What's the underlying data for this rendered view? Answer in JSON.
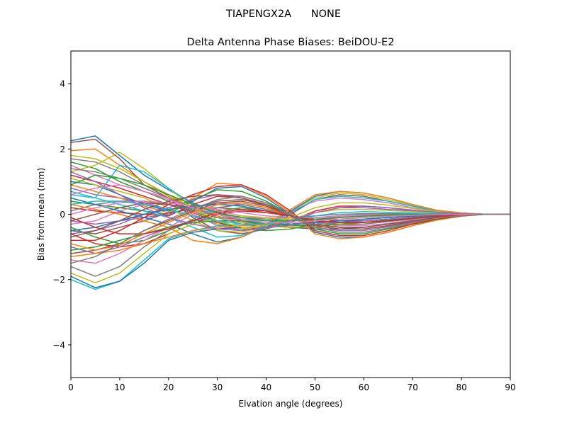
{
  "suptitle": "TIAPENGX2A      NONE",
  "chart_data": {
    "type": "line",
    "title": "Delta Antenna Phase Biases: BeiDOU-E2",
    "xlabel": "Elvation angle (degrees)",
    "ylabel": "Bias from mean (mm)",
    "xlim": [
      0,
      90
    ],
    "ylim": [
      -5,
      5
    ],
    "xticks": [
      0,
      10,
      20,
      30,
      40,
      50,
      60,
      70,
      80,
      90
    ],
    "yticks": [
      -4,
      -2,
      0,
      2,
      4
    ],
    "ytick_labels": [
      "−4",
      "−2",
      "0",
      "2",
      "4"
    ],
    "grid": false,
    "legend": "none",
    "x": [
      0,
      5,
      10,
      15,
      20,
      25,
      30,
      35,
      40,
      45,
      50,
      55,
      60,
      65,
      70,
      75,
      80,
      85,
      90
    ],
    "colors": [
      "#1f77b4",
      "#ff7f0e",
      "#2ca02c",
      "#d62728",
      "#9467bd",
      "#8c564b",
      "#e377c2",
      "#7f7f7f",
      "#bcbd22",
      "#17becf"
    ],
    "series": [
      {
        "values": [
          2.25,
          2.4,
          1.8,
          1.2,
          0.75,
          0.35,
          0.05,
          -0.2,
          -0.35,
          -0.4,
          -0.45,
          -0.45,
          -0.4,
          -0.3,
          -0.2,
          -0.1,
          -0.05,
          0.0,
          0.0
        ]
      },
      {
        "values": [
          1.95,
          2.0,
          1.5,
          1.0,
          0.55,
          0.2,
          -0.05,
          -0.25,
          -0.35,
          -0.4,
          -0.4,
          -0.35,
          -0.3,
          -0.22,
          -0.15,
          -0.08,
          -0.03,
          0.0,
          0.0
        ]
      },
      {
        "values": [
          1.6,
          1.4,
          1.0,
          0.7,
          0.4,
          0.1,
          -0.2,
          -0.45,
          -0.5,
          -0.45,
          -0.3,
          -0.25,
          -0.2,
          -0.15,
          -0.1,
          -0.05,
          -0.02,
          0.0,
          0.0
        ]
      },
      {
        "values": [
          1.2,
          1.0,
          0.8,
          0.55,
          0.3,
          0.05,
          -0.25,
          -0.45,
          -0.4,
          -0.2,
          0.1,
          0.25,
          0.25,
          0.2,
          0.12,
          0.06,
          0.02,
          0.0,
          0.0
        ]
      },
      {
        "values": [
          0.8,
          0.6,
          0.5,
          0.35,
          0.15,
          -0.05,
          -0.3,
          -0.5,
          -0.45,
          -0.25,
          0.05,
          0.2,
          0.2,
          0.15,
          0.1,
          0.05,
          0.02,
          0.0,
          0.0
        ]
      },
      {
        "values": [
          2.2,
          2.3,
          1.7,
          0.9,
          0.5,
          -0.1,
          -0.5,
          -0.6,
          -0.45,
          0.0,
          0.45,
          0.6,
          0.55,
          0.4,
          0.25,
          0.1,
          0.03,
          0.0,
          0.0
        ]
      },
      {
        "values": [
          1.5,
          1.2,
          0.9,
          0.7,
          0.5,
          0.0,
          -0.35,
          -0.5,
          -0.3,
          0.1,
          0.4,
          0.5,
          0.45,
          0.35,
          0.2,
          0.1,
          0.03,
          0.0,
          0.0
        ]
      },
      {
        "values": [
          1.7,
          1.6,
          1.3,
          0.9,
          0.6,
          0.3,
          0.0,
          -0.2,
          -0.3,
          -0.3,
          -0.25,
          -0.2,
          -0.15,
          -0.1,
          -0.06,
          -0.03,
          -0.01,
          0.0,
          0.0
        ]
      },
      {
        "values": [
          1.3,
          1.5,
          1.9,
          1.4,
          0.8,
          0.2,
          -0.3,
          -0.45,
          -0.35,
          -0.15,
          0.05,
          0.15,
          0.15,
          0.12,
          0.08,
          0.04,
          0.01,
          0.0,
          0.0
        ]
      },
      {
        "values": [
          0.6,
          0.5,
          1.5,
          1.3,
          0.8,
          0.3,
          0.0,
          -0.15,
          -0.2,
          -0.15,
          -0.1,
          -0.05,
          0.0,
          0.02,
          0.02,
          0.01,
          0.0,
          0.0,
          0.0
        ]
      },
      {
        "values": [
          1.0,
          0.9,
          0.6,
          0.3,
          0.1,
          0.4,
          0.8,
          0.85,
          0.5,
          0.0,
          -0.55,
          -0.7,
          -0.7,
          -0.55,
          -0.35,
          -0.15,
          -0.05,
          0.0,
          0.0
        ]
      },
      {
        "values": [
          0.9,
          0.7,
          0.5,
          0.25,
          0.05,
          0.5,
          0.95,
          0.9,
          0.55,
          0.05,
          -0.6,
          -0.75,
          -0.7,
          -0.55,
          -0.35,
          -0.18,
          -0.06,
          0.0,
          0.0
        ]
      },
      {
        "values": [
          0.4,
          0.3,
          0.2,
          0.1,
          0.0,
          0.45,
          0.75,
          0.7,
          0.4,
          0.0,
          -0.45,
          -0.6,
          -0.6,
          -0.45,
          -0.3,
          -0.15,
          -0.05,
          0.0,
          0.0
        ]
      },
      {
        "values": [
          0.2,
          0.1,
          0.05,
          0.0,
          -0.05,
          0.3,
          0.55,
          0.5,
          0.3,
          0.0,
          -0.35,
          -0.45,
          -0.45,
          -0.35,
          -0.22,
          -0.1,
          -0.03,
          0.0,
          0.0
        ]
      },
      {
        "values": [
          -0.2,
          -0.3,
          -0.2,
          -0.1,
          0.0,
          0.2,
          0.35,
          0.3,
          0.15,
          -0.05,
          -0.25,
          -0.3,
          -0.3,
          -0.22,
          -0.15,
          -0.07,
          -0.02,
          0.0,
          0.0
        ]
      },
      {
        "values": [
          -0.5,
          -0.6,
          -0.4,
          -0.2,
          0.05,
          0.15,
          0.2,
          0.15,
          0.05,
          -0.05,
          -0.15,
          -0.2,
          -0.2,
          -0.15,
          -0.1,
          -0.05,
          -0.02,
          0.0,
          0.0
        ]
      },
      {
        "values": [
          -0.3,
          -0.2,
          0.1,
          0.3,
          0.35,
          0.25,
          0.1,
          -0.05,
          -0.15,
          -0.15,
          -0.1,
          -0.05,
          -0.02,
          0.0,
          0.0,
          0.0,
          0.0,
          0.0,
          0.0
        ]
      },
      {
        "values": [
          0.1,
          0.3,
          0.4,
          0.4,
          0.3,
          0.15,
          0.0,
          -0.1,
          -0.15,
          -0.1,
          -0.05,
          0.0,
          0.02,
          0.02,
          0.01,
          0.0,
          0.0,
          0.0,
          0.0
        ]
      },
      {
        "values": [
          1.1,
          0.9,
          0.7,
          0.5,
          0.2,
          -0.2,
          -0.5,
          -0.55,
          -0.35,
          0.1,
          0.5,
          0.65,
          0.6,
          0.45,
          0.28,
          0.12,
          0.04,
          0.0,
          0.0
        ]
      },
      {
        "values": [
          0.7,
          0.5,
          0.3,
          0.1,
          -0.1,
          -0.4,
          -0.7,
          -0.65,
          -0.4,
          0.05,
          0.45,
          0.55,
          0.5,
          0.4,
          0.25,
          0.1,
          0.03,
          0.0,
          0.0
        ]
      },
      {
        "values": [
          0.5,
          0.3,
          0.1,
          -0.1,
          -0.3,
          -0.6,
          -0.85,
          -0.7,
          -0.35,
          0.1,
          0.55,
          0.7,
          0.65,
          0.5,
          0.3,
          0.12,
          0.04,
          0.0,
          0.0
        ]
      },
      {
        "values": [
          0.3,
          0.15,
          0.0,
          -0.2,
          -0.4,
          -0.8,
          -0.9,
          -0.7,
          -0.3,
          0.15,
          0.6,
          0.7,
          0.65,
          0.5,
          0.3,
          0.12,
          0.04,
          0.0,
          0.0
        ]
      },
      {
        "values": [
          -0.4,
          -0.7,
          -0.9,
          -0.8,
          -0.5,
          -0.2,
          0.1,
          0.2,
          0.1,
          -0.05,
          -0.2,
          -0.25,
          -0.25,
          -0.2,
          -0.12,
          -0.05,
          -0.02,
          0.0,
          0.0
        ]
      },
      {
        "values": [
          -0.6,
          -0.9,
          -1.0,
          -0.9,
          -0.6,
          -0.3,
          0.0,
          0.1,
          0.05,
          -0.05,
          -0.15,
          -0.2,
          -0.2,
          -0.15,
          -0.1,
          -0.05,
          -0.02,
          0.0,
          0.0
        ]
      },
      {
        "values": [
          -1.0,
          -1.2,
          -1.0,
          -0.7,
          -0.4,
          -0.2,
          -0.1,
          -0.15,
          -0.3,
          -0.35,
          -0.3,
          -0.25,
          -0.2,
          -0.15,
          -0.1,
          -0.05,
          -0.02,
          0.0,
          0.0
        ]
      },
      {
        "values": [
          -1.2,
          -1.1,
          -0.9,
          -0.5,
          -0.2,
          0.1,
          0.35,
          0.4,
          0.25,
          0.0,
          -0.3,
          -0.4,
          -0.4,
          -0.3,
          -0.2,
          -0.1,
          -0.03,
          0.0,
          0.0
        ]
      },
      {
        "values": [
          -1.4,
          -1.5,
          -1.2,
          -0.8,
          -0.4,
          0.0,
          0.3,
          0.35,
          0.2,
          0.0,
          -0.25,
          -0.35,
          -0.35,
          -0.28,
          -0.18,
          -0.08,
          -0.02,
          0.0,
          0.0
        ]
      },
      {
        "values": [
          -1.6,
          -1.9,
          -1.6,
          -1.0,
          -0.5,
          -0.15,
          0.2,
          0.3,
          0.15,
          -0.05,
          -0.25,
          -0.3,
          -0.3,
          -0.22,
          -0.15,
          -0.07,
          -0.02,
          0.0,
          0.0
        ]
      },
      {
        "values": [
          -1.8,
          -2.1,
          -1.8,
          -1.2,
          -0.6,
          -0.3,
          -0.1,
          -0.05,
          -0.1,
          -0.15,
          -0.15,
          -0.1,
          -0.05,
          -0.02,
          0.0,
          0.0,
          0.0,
          0.0,
          0.0
        ]
      },
      {
        "values": [
          -2.0,
          -2.3,
          -2.05,
          -1.4,
          -0.75,
          -0.5,
          -0.35,
          -0.3,
          -0.3,
          -0.3,
          -0.25,
          -0.2,
          -0.15,
          -0.1,
          -0.06,
          -0.03,
          -0.01,
          0.0,
          0.0
        ]
      },
      {
        "values": [
          -1.9,
          -2.25,
          -2.05,
          -1.5,
          -0.8,
          -0.55,
          -0.45,
          -0.4,
          -0.35,
          -0.3,
          -0.25,
          -0.2,
          -0.15,
          -0.1,
          -0.06,
          -0.03,
          -0.01,
          0.0,
          0.0
        ]
      },
      {
        "values": [
          -1.3,
          -1.2,
          -1.1,
          -0.9,
          -0.7,
          -0.5,
          -0.4,
          -0.35,
          -0.3,
          -0.25,
          -0.2,
          -0.15,
          -0.1,
          -0.06,
          -0.03,
          -0.01,
          0.0,
          0.0,
          0.0
        ]
      },
      {
        "values": [
          -1.1,
          -1.0,
          -0.8,
          -0.6,
          -0.4,
          -0.25,
          -0.2,
          -0.2,
          -0.3,
          -0.35,
          -0.35,
          -0.3,
          -0.25,
          -0.18,
          -0.12,
          -0.06,
          -0.02,
          0.0,
          0.0
        ]
      },
      {
        "values": [
          -0.8,
          -0.8,
          -0.5,
          -0.1,
          0.3,
          0.6,
          0.85,
          0.9,
          0.6,
          0.1,
          -0.5,
          -0.65,
          -0.65,
          -0.5,
          -0.3,
          -0.14,
          -0.05,
          0.0,
          0.0
        ]
      },
      {
        "values": [
          -0.6,
          -0.5,
          -0.3,
          0.0,
          0.2,
          0.45,
          0.6,
          0.55,
          0.35,
          0.0,
          -0.4,
          -0.5,
          -0.5,
          -0.38,
          -0.25,
          -0.12,
          -0.04,
          0.0,
          0.0
        ]
      },
      {
        "values": [
          -0.2,
          0.0,
          0.2,
          0.35,
          0.3,
          0.2,
          0.4,
          0.45,
          0.3,
          0.0,
          -0.3,
          -0.4,
          -0.4,
          -0.3,
          -0.2,
          -0.1,
          -0.03,
          0.0,
          0.0
        ]
      },
      {
        "values": [
          0.0,
          0.2,
          0.35,
          0.4,
          0.35,
          0.25,
          0.15,
          0.05,
          -0.05,
          -0.1,
          -0.1,
          -0.08,
          -0.05,
          -0.03,
          -0.02,
          -0.01,
          0.0,
          0.0,
          0.0
        ]
      },
      {
        "values": [
          1.4,
          1.3,
          1.1,
          0.8,
          0.5,
          0.2,
          -0.1,
          -0.3,
          -0.4,
          -0.35,
          -0.2,
          -0.1,
          -0.05,
          -0.02,
          0.0,
          0.0,
          0.0,
          0.0,
          0.0
        ]
      },
      {
        "values": [
          1.8,
          1.7,
          1.4,
          1.0,
          0.6,
          0.2,
          -0.2,
          -0.4,
          -0.35,
          -0.1,
          0.2,
          0.35,
          0.35,
          0.28,
          0.18,
          0.08,
          0.02,
          0.0,
          0.0
        ]
      },
      {
        "values": [
          0.3,
          0.4,
          0.4,
          0.3,
          0.15,
          -0.05,
          -0.2,
          -0.3,
          -0.3,
          -0.2,
          -0.05,
          0.05,
          0.08,
          0.06,
          0.04,
          0.02,
          0.0,
          0.0,
          0.0
        ]
      },
      {
        "values": [
          -0.5,
          -0.4,
          -0.2,
          0.0,
          0.15,
          0.25,
          0.3,
          0.25,
          0.1,
          -0.05,
          -0.2,
          -0.25,
          -0.25,
          -0.2,
          -0.12,
          -0.06,
          -0.02,
          0.0,
          0.0
        ]
      },
      {
        "values": [
          -0.9,
          -1.1,
          -0.95,
          -0.6,
          -0.25,
          0.05,
          0.3,
          0.35,
          0.2,
          -0.05,
          -0.35,
          -0.45,
          -0.45,
          -0.35,
          -0.22,
          -0.1,
          -0.03,
          0.0,
          0.0
        ]
      },
      {
        "values": [
          0.9,
          1.2,
          1.1,
          0.9,
          0.6,
          0.3,
          0.05,
          -0.1,
          -0.2,
          -0.2,
          -0.15,
          -0.1,
          -0.06,
          -0.03,
          -0.01,
          0.0,
          0.0,
          0.0,
          0.0
        ]
      },
      {
        "values": [
          -0.1,
          -0.4,
          -0.6,
          -0.6,
          -0.45,
          -0.2,
          0.05,
          0.15,
          0.1,
          -0.05,
          -0.2,
          -0.25,
          -0.25,
          -0.2,
          -0.12,
          -0.06,
          -0.02,
          0.0,
          0.0
        ]
      },
      {
        "values": [
          1.3,
          1.0,
          0.6,
          0.2,
          -0.1,
          -0.3,
          -0.45,
          -0.5,
          -0.4,
          -0.2,
          0.05,
          0.2,
          0.25,
          0.2,
          0.13,
          0.06,
          0.02,
          0.0,
          0.0
        ]
      },
      {
        "values": [
          -0.7,
          -0.5,
          -0.2,
          0.15,
          0.4,
          0.55,
          0.6,
          0.5,
          0.25,
          -0.05,
          -0.35,
          -0.45,
          -0.45,
          -0.35,
          -0.22,
          -0.1,
          -0.03,
          0.0,
          0.0
        ]
      },
      {
        "values": [
          0.6,
          0.8,
          0.9,
          0.7,
          0.45,
          0.2,
          0.0,
          -0.15,
          -0.25,
          -0.25,
          -0.2,
          -0.15,
          -0.1,
          -0.06,
          -0.03,
          -0.01,
          0.0,
          0.0,
          0.0
        ]
      },
      {
        "values": [
          -1.5,
          -1.3,
          -0.9,
          -0.5,
          -0.15,
          0.15,
          0.45,
          0.55,
          0.35,
          0.0,
          -0.4,
          -0.55,
          -0.55,
          -0.42,
          -0.27,
          -0.12,
          -0.04,
          0.0,
          0.0
        ]
      }
    ]
  }
}
